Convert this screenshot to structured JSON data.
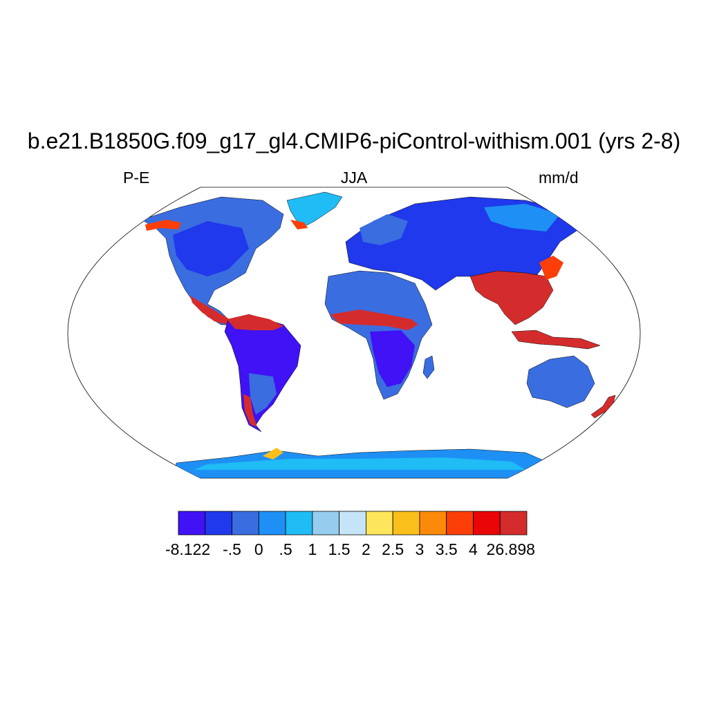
{
  "title": "b.e21.B1850G.f09_g17_gl4.CMIP6-piControl-withism.001 (yrs 2-8)",
  "left_label": "P-E",
  "center_label": "JJA",
  "right_label": "mm/d",
  "colorbar": {
    "colors": [
      "#4012f5",
      "#2039ec",
      "#3a6de0",
      "#1e90f5",
      "#1fbcf5",
      "#96cdee",
      "#c6e4f7",
      "#fde65b",
      "#fbbf1c",
      "#fb8a0a",
      "#fc3e08",
      "#e80606",
      "#d42c2c"
    ],
    "labels": [
      "-8.122",
      "-.5",
      "0",
      ".5",
      "1",
      "1.5",
      "2",
      "2.5",
      "3",
      "3.5",
      "4",
      "26.898"
    ]
  },
  "map": {
    "projection": "Robinson",
    "ocean_color": "#ffffff",
    "regions": [
      {
        "name": "north-america",
        "color": "#3a6de0"
      },
      {
        "name": "south-america",
        "color": "#4012f5"
      },
      {
        "name": "africa-north",
        "color": "#3a6de0"
      },
      {
        "name": "africa-sahel",
        "color": "#d42c2c"
      },
      {
        "name": "africa-south",
        "color": "#4012f5"
      },
      {
        "name": "eurasia",
        "color": "#2039ec"
      },
      {
        "name": "south-asia",
        "color": "#d42c2c"
      },
      {
        "name": "australia",
        "color": "#3a6de0"
      },
      {
        "name": "greenland",
        "color": "#1fbcf5"
      },
      {
        "name": "antarctica",
        "color": "#1e90f5"
      }
    ]
  }
}
